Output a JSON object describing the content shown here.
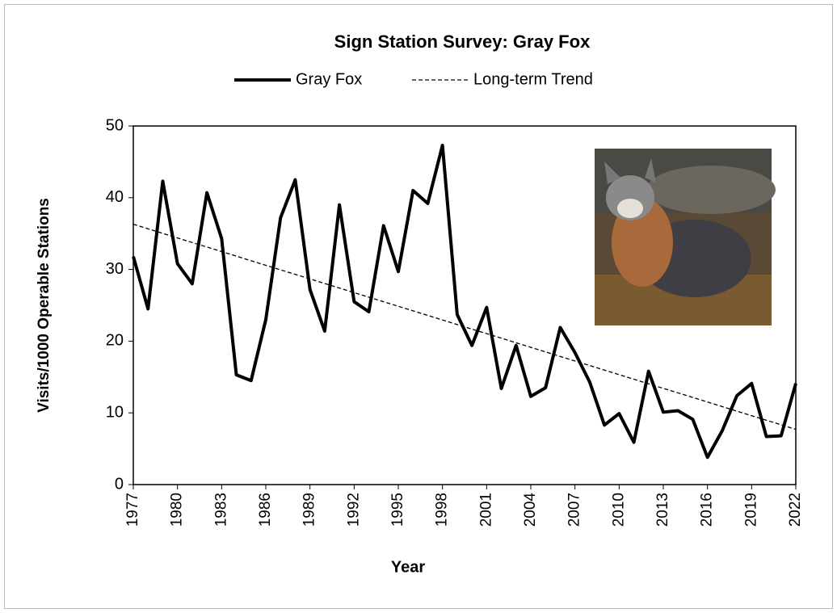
{
  "chart_data": {
    "type": "line",
    "title": "Sign Station Survey: Gray Fox",
    "x_label": "Year",
    "y_label": "Visits/1000 Operable Stations",
    "x": [
      1977,
      1978,
      1979,
      1980,
      1981,
      1982,
      1983,
      1984,
      1985,
      1986,
      1987,
      1988,
      1989,
      1990,
      1991,
      1992,
      1993,
      1994,
      1995,
      1996,
      1997,
      1998,
      1999,
      2000,
      2001,
      2002,
      2003,
      2004,
      2005,
      2006,
      2007,
      2008,
      2009,
      2010,
      2011,
      2012,
      2013,
      2014,
      2015,
      2016,
      2017,
      2018,
      2019,
      2020,
      2021,
      2022
    ],
    "series": [
      {
        "name": "Gray Fox",
        "color": "#000000",
        "values": [
          31.8,
          24.5,
          42.3,
          30.8,
          28.0,
          40.7,
          34.3,
          15.3,
          14.5,
          23.0,
          37.2,
          42.5,
          27.2,
          21.4,
          39.0,
          25.5,
          24.1,
          36.1,
          29.7,
          41.0,
          39.2,
          47.3,
          23.7,
          19.4,
          24.7,
          13.4,
          19.4,
          12.3,
          13.5,
          21.9,
          18.4,
          14.3,
          8.3,
          9.9,
          5.9,
          15.8,
          10.1,
          10.3,
          9.1,
          3.8,
          7.5,
          12.4,
          14.1,
          6.7,
          6.8,
          14.1
        ]
      },
      {
        "name": "Long-term Trend",
        "color": "#000000",
        "dashed": true,
        "x": [
          1977,
          2022
        ],
        "values": [
          36.3,
          7.7
        ]
      }
    ],
    "xlim": [
      1977,
      2022
    ],
    "xticks": [
      1977,
      1980,
      1983,
      1986,
      1989,
      1992,
      1995,
      1998,
      2001,
      2004,
      2007,
      2010,
      2013,
      2016,
      2019,
      2022
    ],
    "ylim": [
      0,
      50
    ],
    "yticks": [
      0,
      10,
      20,
      30,
      40,
      50
    ],
    "grid": false
  }
}
